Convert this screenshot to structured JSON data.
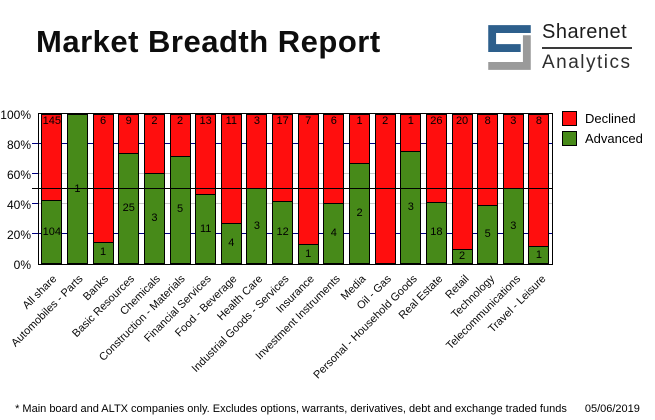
{
  "header": {
    "logo": {
      "name": "Sharenet",
      "sub": "Analytics",
      "icon": "sharenet-s-mark",
      "blue": "#2d5f8c",
      "gray": "#9a9a9a"
    }
  },
  "chart_data": {
    "type": "bar",
    "stacked": true,
    "title": "Market Breadth Report",
    "categories": [
      "All share",
      "Automobiles - Parts",
      "Banks",
      "Basic Resources",
      "Chemicals",
      "Construction - Materials",
      "Financial Services",
      "Food - Beverage",
      "Health Care",
      "Industrial Goods - Services",
      "Insurance",
      "Investment Instruments",
      "Media",
      "Oil - Gas",
      "Personal - Household Goods",
      "Real Estate",
      "Retail",
      "Technology",
      "Telecommunications",
      "Travel - Leisure"
    ],
    "series": [
      {
        "name": "Declined",
        "color": "#ff0e0e",
        "values": [
          145,
          0,
          6,
          9,
          2,
          2,
          13,
          11,
          3,
          17,
          7,
          6,
          1,
          2,
          1,
          26,
          20,
          8,
          3,
          8
        ]
      },
      {
        "name": "Advanced",
        "color": "#478a19",
        "values": [
          104,
          1,
          1,
          25,
          3,
          5,
          11,
          4,
          3,
          12,
          1,
          4,
          2,
          0,
          3,
          18,
          2,
          5,
          3,
          1
        ]
      }
    ],
    "value_axis": "percent-of-total",
    "ylim": [
      0,
      100
    ],
    "y_ticks": [
      "100%",
      "80%",
      "60%",
      "40%",
      "20%",
      "0%"
    ],
    "reference_line_pct": 50,
    "gridlines": [
      {
        "pct": 20,
        "color": "#000080"
      },
      {
        "pct": 40,
        "color": "#c9c9c9"
      },
      {
        "pct": 60,
        "color": "#c9c9c9"
      },
      {
        "pct": 80,
        "color": "#000080"
      }
    ],
    "legend_position": "outside-top-right",
    "grid": true
  },
  "footer": {
    "disclaimer": "* Main board and ALTX companies only. Excludes options, warrants, derivatives, debt and exchange traded funds",
    "date": "05/06/2019"
  }
}
